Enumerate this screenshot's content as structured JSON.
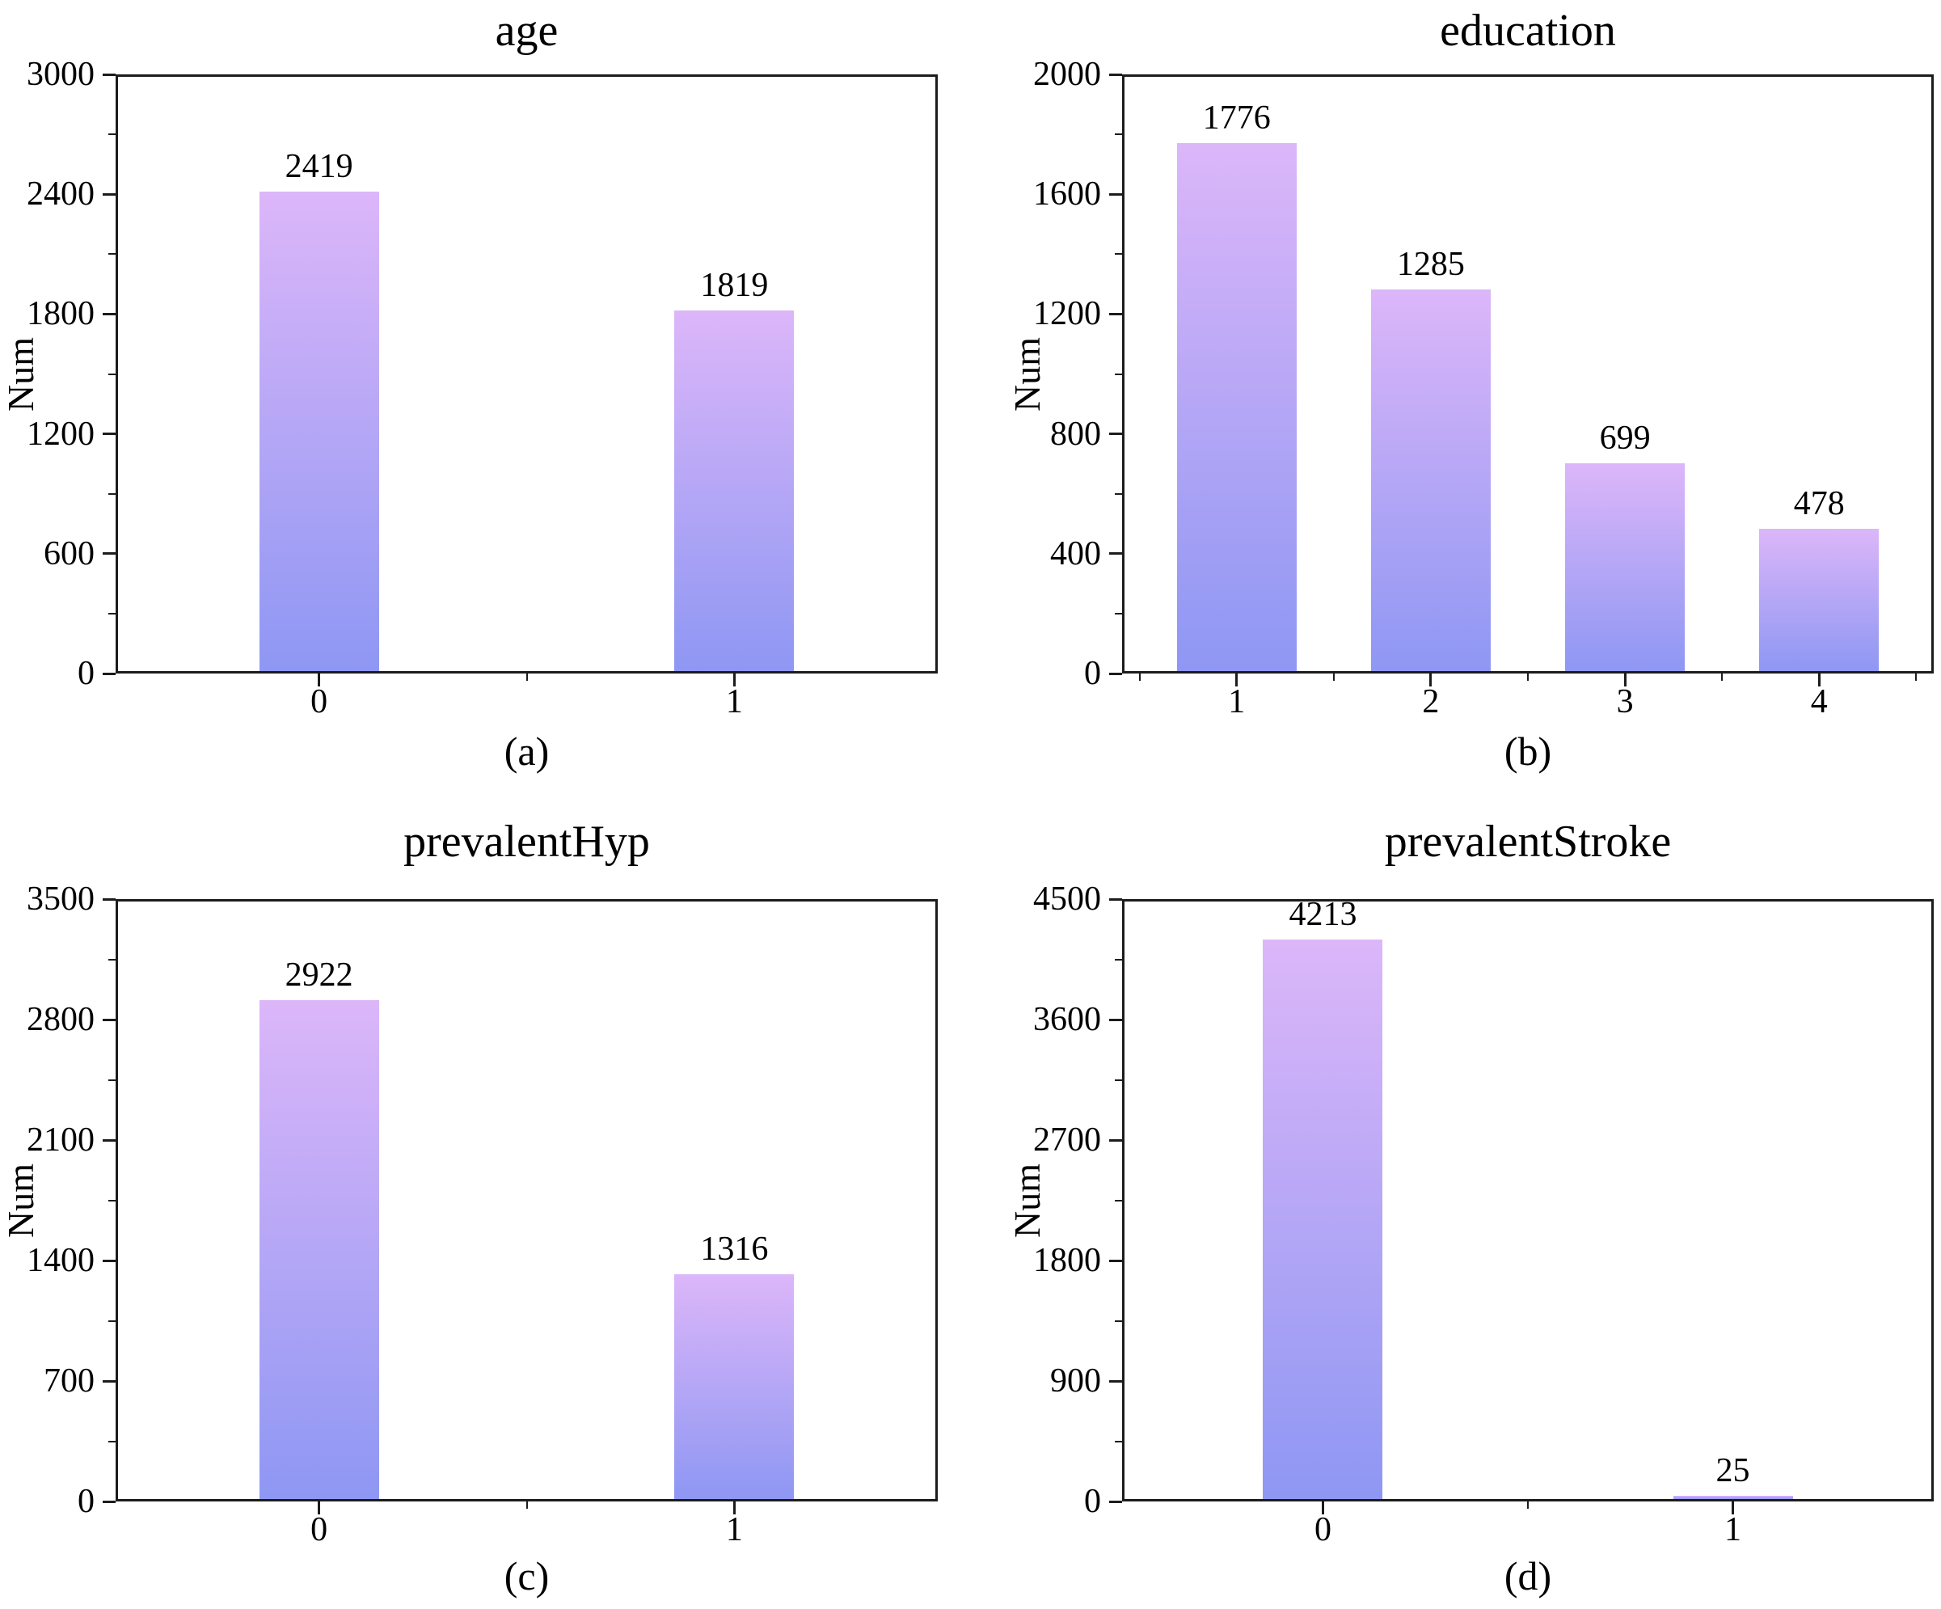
{
  "figure": {
    "background": "#ffffff"
  },
  "style": {
    "bar_gradient_top": "#dcb6f9",
    "bar_gradient_bottom": "#8e97f3",
    "axis_color": "#1c1c1c",
    "text_color": "#000000"
  },
  "chart_data": [
    {
      "type": "bar",
      "title": "age",
      "caption": "(a)",
      "xlabel": "",
      "ylabel": "Num",
      "categories": [
        "0",
        "1"
      ],
      "values": [
        2419,
        1819
      ],
      "ylim": [
        0,
        3000
      ],
      "yticks": [
        0,
        600,
        1200,
        1800,
        2400,
        3000
      ],
      "grid": false,
      "legend": null,
      "bar_labels": true
    },
    {
      "type": "bar",
      "title": "education",
      "caption": "(b)",
      "xlabel": "",
      "ylabel": "Num",
      "categories": [
        "1",
        "2",
        "3",
        "4"
      ],
      "values": [
        1776,
        1285,
        699,
        478
      ],
      "ylim": [
        0,
        2000
      ],
      "yticks": [
        0,
        400,
        800,
        1200,
        1600,
        2000
      ],
      "grid": false,
      "legend": null,
      "bar_labels": true
    },
    {
      "type": "bar",
      "title": "prevalentHyp",
      "caption": "(c)",
      "xlabel": "",
      "ylabel": "Num",
      "categories": [
        "0",
        "1"
      ],
      "values": [
        2922,
        1316
      ],
      "ylim": [
        0,
        3500
      ],
      "yticks": [
        0,
        700,
        1400,
        2100,
        2800,
        3500
      ],
      "grid": false,
      "legend": null,
      "bar_labels": true
    },
    {
      "type": "bar",
      "title": "prevalentStroke",
      "caption": "(d)",
      "xlabel": "",
      "ylabel": "Num",
      "categories": [
        "0",
        "1"
      ],
      "values": [
        4213,
        25
      ],
      "ylim": [
        0,
        4500
      ],
      "yticks": [
        0,
        900,
        1800,
        2700,
        3600,
        4500
      ],
      "grid": false,
      "legend": null,
      "bar_labels": true
    }
  ]
}
